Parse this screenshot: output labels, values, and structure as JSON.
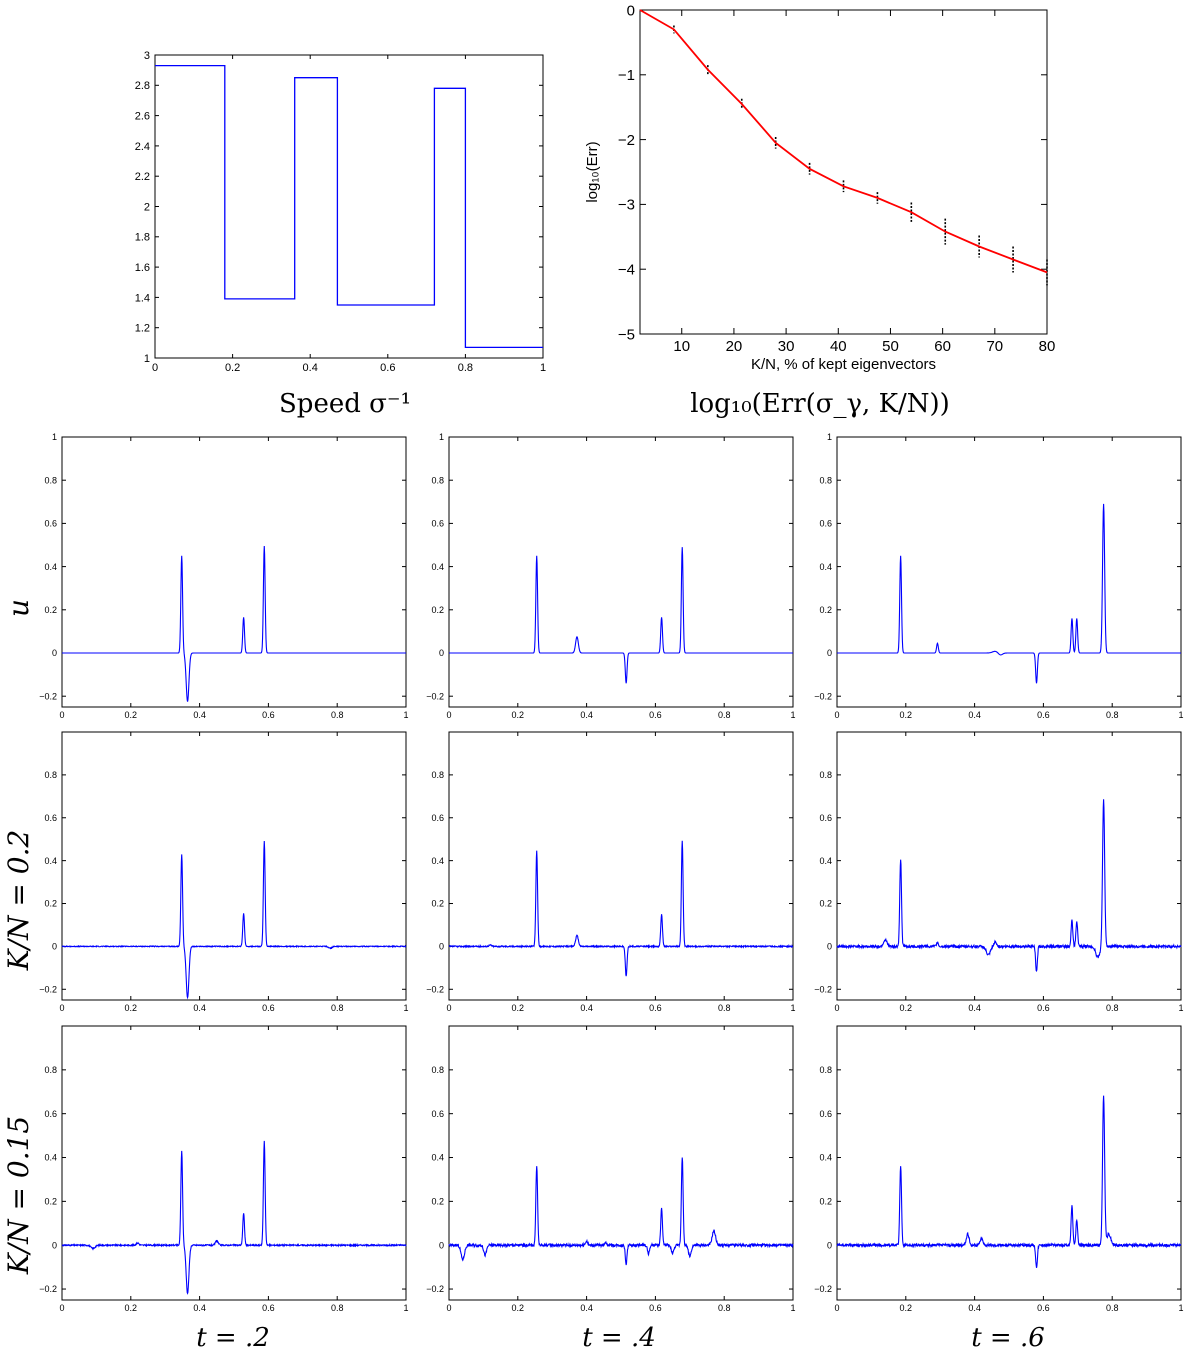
{
  "chart_data": [
    {
      "id": "speed",
      "type": "line",
      "caption": "Speed σ⁻¹",
      "xlim": [
        0,
        1
      ],
      "ylim": [
        1,
        3
      ],
      "xticks": [
        "0",
        "0.2",
        "0.4",
        "0.6",
        "0.8",
        "1"
      ],
      "yticks": [
        "1",
        "1.2",
        "1.4",
        "1.6",
        "1.8",
        "2",
        "2.2",
        "2.4",
        "2.6",
        "2.8",
        "3"
      ],
      "color": "#0000ff",
      "series": [
        {
          "x": [
            0,
            0.18,
            0.18,
            0.36,
            0.36,
            0.47,
            0.47,
            0.72,
            0.72,
            0.8,
            0.8,
            1.0
          ],
          "y": [
            2.93,
            2.93,
            1.39,
            1.39,
            2.85,
            2.85,
            1.35,
            1.35,
            2.78,
            2.78,
            1.07,
            1.07
          ]
        }
      ]
    },
    {
      "id": "error",
      "type": "line",
      "caption": "log₁₀(Err(σ_γ, K/N))",
      "xlabel": "K/N, % of kept eigenvectors",
      "ylabel": "log₁₀(Err)",
      "xlim": [
        2,
        80
      ],
      "ylim": [
        -5,
        0
      ],
      "xticks": [
        "10",
        "20",
        "30",
        "40",
        "50",
        "60",
        "70",
        "80"
      ],
      "yticks": [
        "0",
        "−1",
        "−2",
        "−3",
        "−4",
        "−5"
      ],
      "color": "#ff0000",
      "errorbar_color": "#000000",
      "series": [
        {
          "x": [
            2,
            8.5,
            15,
            21.5,
            28,
            34.5,
            41,
            47.5,
            54,
            60.5,
            67,
            73.5,
            80
          ],
          "y": [
            0,
            -0.3,
            -0.92,
            -1.45,
            -2.05,
            -2.45,
            -2.72,
            -2.9,
            -3.12,
            -3.42,
            -3.65,
            -3.85,
            -4.05
          ],
          "err": [
            0,
            0.06,
            0.07,
            0.08,
            0.09,
            0.09,
            0.09,
            0.09,
            0.15,
            0.2,
            0.17,
            0.2,
            0.2
          ]
        }
      ]
    }
  ],
  "grid": {
    "row_labels": [
      "u",
      "K/N = 0.2",
      "K/N = 0.15"
    ],
    "col_labels": [
      "t = .2",
      "t = .4",
      "t = .6"
    ],
    "xlim": [
      0,
      1
    ],
    "ylim": [
      -0.25,
      1.0
    ],
    "xticks": [
      "0",
      "0.2",
      "0.4",
      "0.6",
      "0.8",
      "1"
    ],
    "yticks_top": [
      "−0.2",
      "0",
      "0.2",
      "0.4",
      "0.6",
      "0.8",
      "1"
    ],
    "yticks": [
      "−0.2",
      "0",
      "0.2",
      "0.4",
      "0.6",
      "0.8"
    ],
    "color": "#0000ff",
    "panels": [
      [
        {
          "spikes": [
            [
              0.348,
              0.45,
              0.0025
            ],
            [
              0.365,
              -0.225,
              0.004
            ],
            [
              0.528,
              0.165,
              0.0025
            ],
            [
              0.588,
              0.495,
              0.0025
            ]
          ],
          "noise": 0
        },
        {
          "spikes": [
            [
              0.255,
              0.45,
              0.0025
            ],
            [
              0.372,
              0.075,
              0.004
            ],
            [
              0.515,
              -0.14,
              0.0025
            ],
            [
              0.618,
              0.165,
              0.0025
            ],
            [
              0.678,
              0.49,
              0.0025
            ]
          ],
          "noise": 0
        },
        {
          "spikes": [
            [
              0.185,
              0.45,
              0.0025
            ],
            [
              0.292,
              0.045,
              0.0025
            ],
            [
              0.46,
              0.008,
              0.008
            ],
            [
              0.475,
              -0.01,
              0.006
            ],
            [
              0.58,
              -0.14,
              0.0025
            ],
            [
              0.683,
              0.16,
              0.0025
            ],
            [
              0.697,
              0.16,
              0.0025
            ],
            [
              0.775,
              0.69,
              0.003
            ]
          ],
          "noise": 0
        }
      ],
      [
        {
          "spikes": [
            [
              0.348,
              0.43,
              0.0025
            ],
            [
              0.365,
              -0.24,
              0.004
            ],
            [
              0.528,
              0.155,
              0.0025
            ],
            [
              0.588,
              0.49,
              0.0025
            ],
            [
              0.78,
              -0.008,
              0.005
            ]
          ],
          "noise": 0.002
        },
        {
          "spikes": [
            [
              0.255,
              0.445,
              0.0025
            ],
            [
              0.372,
              0.05,
              0.004
            ],
            [
              0.515,
              -0.14,
              0.0025
            ],
            [
              0.618,
              0.15,
              0.0025
            ],
            [
              0.678,
              0.49,
              0.0025
            ],
            [
              0.12,
              0.006,
              0.004
            ]
          ],
          "noise": 0.003
        },
        {
          "spikes": [
            [
              0.14,
              0.03,
              0.005
            ],
            [
              0.185,
              0.41,
              0.0025
            ],
            [
              0.292,
              0.02,
              0.0025
            ],
            [
              0.44,
              -0.04,
              0.006
            ],
            [
              0.46,
              0.02,
              0.004
            ],
            [
              0.58,
              -0.12,
              0.0025
            ],
            [
              0.683,
              0.12,
              0.0025
            ],
            [
              0.697,
              0.115,
              0.0025
            ],
            [
              0.758,
              -0.05,
              0.006
            ],
            [
              0.775,
              0.69,
              0.003
            ]
          ],
          "noise": 0.006
        }
      ],
      [
        {
          "spikes": [
            [
              0.09,
              -0.015,
              0.006
            ],
            [
              0.22,
              0.01,
              0.004
            ],
            [
              0.348,
              0.43,
              0.0025
            ],
            [
              0.365,
              -0.22,
              0.004
            ],
            [
              0.45,
              0.02,
              0.004
            ],
            [
              0.528,
              0.145,
              0.0025
            ],
            [
              0.588,
              0.475,
              0.0025
            ]
          ],
          "noise": 0.003
        },
        {
          "spikes": [
            [
              0.04,
              -0.065,
              0.005
            ],
            [
              0.105,
              -0.045,
              0.004
            ],
            [
              0.255,
              0.365,
              0.0025
            ],
            [
              0.4,
              0.02,
              0.003
            ],
            [
              0.455,
              0.015,
              0.003
            ],
            [
              0.515,
              -0.085,
              0.0025
            ],
            [
              0.58,
              -0.04,
              0.003
            ],
            [
              0.618,
              0.165,
              0.0025
            ],
            [
              0.65,
              -0.035,
              0.004
            ],
            [
              0.678,
              0.405,
              0.0025
            ],
            [
              0.7,
              -0.05,
              0.004
            ],
            [
              0.77,
              0.065,
              0.005
            ]
          ],
          "noise": 0.006
        },
        {
          "spikes": [
            [
              0.185,
              0.365,
              0.0025
            ],
            [
              0.38,
              0.05,
              0.004
            ],
            [
              0.42,
              0.03,
              0.004
            ],
            [
              0.58,
              -0.1,
              0.0025
            ],
            [
              0.683,
              0.18,
              0.0025
            ],
            [
              0.697,
              0.115,
              0.0025
            ],
            [
              0.775,
              0.68,
              0.003
            ],
            [
              0.79,
              0.05,
              0.006
            ]
          ],
          "noise": 0.006
        }
      ]
    ]
  }
}
